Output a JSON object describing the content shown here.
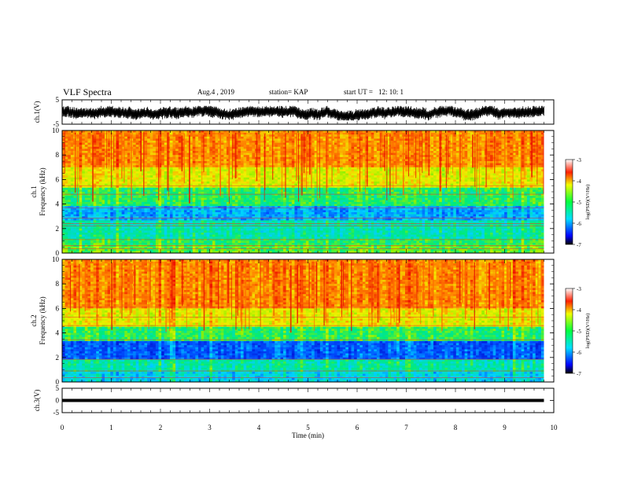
{
  "header": {
    "title": "VLF Spectra",
    "date": "Aug.4 , 2019",
    "station": "station= KAP",
    "start_label": "start UT =",
    "start_value": "12: 10: 1"
  },
  "chart_data": [
    {
      "type": "line",
      "panel": "ch1",
      "title": "",
      "xlabel": "",
      "ylabel": "ch.1(V)",
      "ylim": [
        -5,
        5
      ],
      "yticks": [
        "5",
        "-5"
      ],
      "xlim": [
        0,
        10
      ],
      "series": [
        {
          "description": "waveform envelope",
          "approx_range": [
            -3,
            2
          ]
        }
      ],
      "grid": false
    },
    {
      "type": "heatmap",
      "panel": "ch1-spectrogram",
      "xlabel": "",
      "ylabel": "ch.1 Frequency (kHz)",
      "ylim": [
        0,
        10
      ],
      "yticks": [
        "0",
        "2",
        "4",
        "6",
        "8",
        "10"
      ],
      "xlim": [
        0,
        10
      ],
      "data_extent_min": 9.8,
      "colorbar": {
        "label": "log(PSD)(V²/Hz)",
        "range": [
          -7,
          -3
        ],
        "ticks": [
          "-3",
          "-4",
          "-5",
          "-6",
          "-7"
        ]
      },
      "bands": [
        {
          "from_khz": 0,
          "to_khz": 0.7,
          "level": "mixed"
        },
        {
          "from_khz": 0.7,
          "to_khz": 1.2,
          "level": "green"
        },
        {
          "from_khz": 1.2,
          "to_khz": 2.6,
          "level": "cyan-green"
        },
        {
          "from_khz": 2.6,
          "to_khz": 3.8,
          "level": "blue-cyan"
        },
        {
          "from_khz": 3.8,
          "to_khz": 5.3,
          "level": "green"
        },
        {
          "from_khz": 5.3,
          "to_khz": 7.0,
          "level": "yellow"
        },
        {
          "from_khz": 7.0,
          "to_khz": 10,
          "level": "orange-red"
        }
      ]
    },
    {
      "type": "heatmap",
      "panel": "ch2-spectrogram",
      "xlabel": "",
      "ylabel": "ch.2 Frequency (kHz)",
      "ylim": [
        0,
        10
      ],
      "yticks": [
        "0",
        "2",
        "4",
        "6",
        "8",
        "10"
      ],
      "xlim": [
        0,
        10
      ],
      "data_extent_min": 9.8,
      "colorbar": {
        "label": "log(PSD)(V²/Hz)",
        "range": [
          -7,
          -3
        ],
        "ticks": [
          "-3",
          "-4",
          "-5",
          "-6",
          "-7"
        ]
      },
      "bands": [
        {
          "from_khz": 0,
          "to_khz": 0.8,
          "level": "cyan"
        },
        {
          "from_khz": 0.8,
          "to_khz": 1.8,
          "level": "cyan-green"
        },
        {
          "from_khz": 1.8,
          "to_khz": 3.3,
          "level": "blue"
        },
        {
          "from_khz": 3.3,
          "to_khz": 4.5,
          "level": "green"
        },
        {
          "from_khz": 4.5,
          "to_khz": 6.0,
          "level": "yellow"
        },
        {
          "from_khz": 6.0,
          "to_khz": 10,
          "level": "orange-red"
        }
      ]
    },
    {
      "type": "line",
      "panel": "ch3",
      "xlabel": "Time (min)",
      "ylabel": "ch.3(V)",
      "ylim": [
        -5,
        5
      ],
      "yticks": [
        "5",
        "0",
        "-5"
      ],
      "xlim": [
        0,
        10
      ],
      "xticks": [
        "0",
        "1",
        "2",
        "3",
        "4",
        "5",
        "6",
        "7",
        "8",
        "9",
        "10"
      ],
      "series": [
        {
          "description": "constant",
          "value": 0
        }
      ]
    }
  ],
  "colors": {
    "ink": "#000000",
    "background": "#ffffff",
    "psd_high": "#ff0000",
    "psd_mid": "#00ff00",
    "psd_low": "#0000ff"
  }
}
